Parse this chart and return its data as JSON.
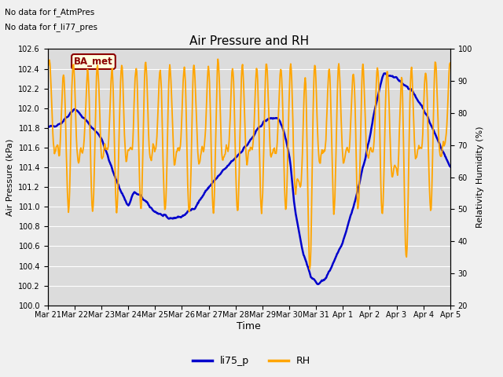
{
  "title": "Air Pressure and RH",
  "note_line1": "No data for f_AtmPres",
  "note_line2": "No data for f_li77_pres",
  "ba_met_label": "BA_met",
  "xlabel": "Time",
  "ylabel_left": "Air Pressure (kPa)",
  "ylabel_right": "Relativity Humidity (%)",
  "left_ylim": [
    100.0,
    102.6
  ],
  "right_ylim": [
    20,
    100
  ],
  "left_yticks": [
    100.0,
    100.2,
    100.4,
    100.6,
    100.8,
    101.0,
    101.2,
    101.4,
    101.6,
    101.8,
    102.0,
    102.2,
    102.4,
    102.6
  ],
  "right_yticks": [
    20,
    30,
    40,
    50,
    60,
    70,
    80,
    90,
    100
  ],
  "xtick_labels": [
    "Mar 21",
    "Mar 22",
    "Mar 23",
    "Mar 24",
    "Mar 25",
    "Mar 26",
    "Mar 27",
    "Mar 28",
    "Mar 29",
    "Mar 30",
    "Mar 31",
    "Apr 1",
    "Apr 2",
    "Apr 3",
    "Apr 4",
    "Apr 5"
  ],
  "pressure_color": "#0000cc",
  "rh_color": "#ffa500",
  "background_color": "#f0f0f0",
  "plot_bg_color": "#dcdcdc",
  "grid_color": "#ffffff",
  "legend_pressure": "li75_p",
  "legend_rh": "RH",
  "linewidth_pressure": 1.8,
  "linewidth_rh": 1.3
}
